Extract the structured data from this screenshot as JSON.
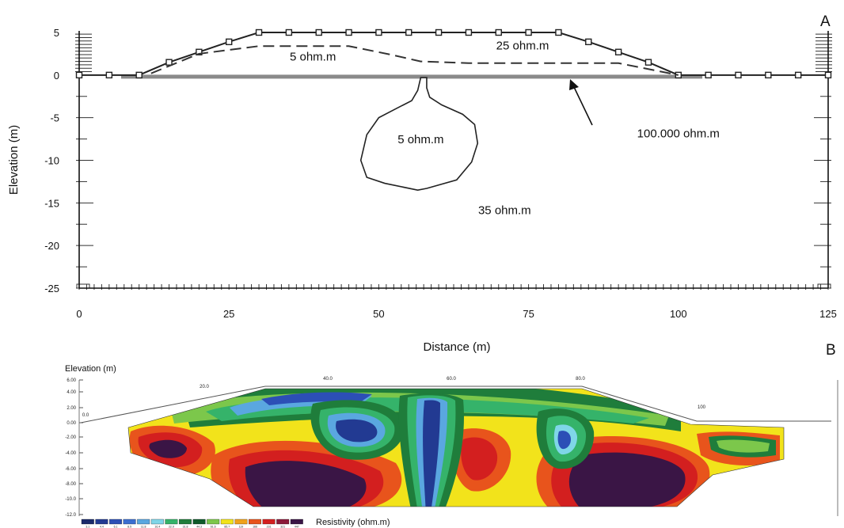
{
  "chart_data": [
    {
      "panel": "A",
      "type": "line",
      "xlabel": "Distance (m)",
      "ylabel": "Elevation (m)",
      "xlim": [
        0,
        125
      ],
      "ylim": [
        -25,
        5
      ],
      "x_ticks": [
        0,
        25,
        50,
        75,
        100,
        125
      ],
      "y_ticks": [
        5,
        0,
        -5,
        -10,
        -15,
        -20,
        -25
      ],
      "surface_profile": [
        [
          0,
          0
        ],
        [
          5,
          0
        ],
        [
          10,
          0
        ],
        [
          15,
          1.5
        ],
        [
          20,
          2.7
        ],
        [
          25,
          3.9
        ],
        [
          30,
          5
        ],
        [
          35,
          5
        ],
        [
          40,
          5
        ],
        [
          45,
          5
        ],
        [
          50,
          5
        ],
        [
          55,
          5
        ],
        [
          60,
          5
        ],
        [
          65,
          5
        ],
        [
          70,
          5
        ],
        [
          75,
          5
        ],
        [
          80,
          5
        ],
        [
          85,
          3.9
        ],
        [
          90,
          2.7
        ],
        [
          95,
          1.5
        ],
        [
          100,
          0
        ],
        [
          105,
          0
        ],
        [
          110,
          0
        ],
        [
          115,
          0
        ],
        [
          120,
          0
        ],
        [
          125,
          0
        ]
      ],
      "layer_boundary": [
        [
          12,
          0.2
        ],
        [
          20,
          2.5
        ],
        [
          30,
          3.4
        ],
        [
          45,
          3.4
        ],
        [
          52,
          2.4
        ],
        [
          57,
          1.6
        ],
        [
          65,
          1.4
        ],
        [
          90,
          1.4
        ],
        [
          100,
          0
        ]
      ],
      "anomaly_outline": [
        [
          57,
          -0.3
        ],
        [
          58,
          -0.3
        ],
        [
          58,
          -1.5
        ],
        [
          58.5,
          -2.6
        ],
        [
          60.5,
          -3.5
        ],
        [
          64,
          -4.6
        ],
        [
          66,
          -5.8
        ],
        [
          66.5,
          -8.0
        ],
        [
          65.5,
          -10.2
        ],
        [
          63,
          -12.3
        ],
        [
          58,
          -13.3
        ],
        [
          56.5,
          -13.5
        ],
        [
          51,
          -12.7
        ],
        [
          48,
          -12.0
        ],
        [
          47,
          -10.0
        ],
        [
          48,
          -7.0
        ],
        [
          50,
          -5.0
        ],
        [
          53,
          -3.9
        ],
        [
          55.5,
          -3.0
        ],
        [
          56.5,
          -1.8
        ],
        [
          57,
          -0.3
        ]
      ],
      "base_layer": {
        "x": [
          7,
          104
        ],
        "y": 0
      },
      "annotations": [
        {
          "text": "5 ohm.m",
          "x": 39,
          "y": 1.7
        },
        {
          "text": "25 ohm.m",
          "x": 74,
          "y": 3.0
        },
        {
          "text": "5 ohm.m",
          "x": 57,
          "y": -8.0
        },
        {
          "text": "100.000 ohm.m",
          "x": 100,
          "y": -7.3
        },
        {
          "text": "35 ohm.m",
          "x": 71,
          "y": -16.3
        }
      ],
      "panel_label": "A"
    },
    {
      "panel": "B",
      "type": "heatmap",
      "ylabel": "Elevation (m)",
      "x_tick_labels": [
        "0.0",
        "20.0",
        "40.0",
        "60.0",
        "80.0",
        "100"
      ],
      "y_tick_labels": [
        "6.00",
        "4.00",
        "2.00",
        "0.00",
        "-2.00",
        "-4.00",
        "-6.00",
        "-8.00",
        "-10.0",
        "-12.0"
      ],
      "colorbar_label": "Resistivity (ohm.m)",
      "colorbar_colors": [
        "#1b2a6b",
        "#223a92",
        "#2c4fb6",
        "#3c6ed0",
        "#5aa7e0",
        "#7fd6e8",
        "#35b36a",
        "#1f7d3b",
        "#0f5a2a",
        "#7cc74b",
        "#f2e31b",
        "#f0a21c",
        "#e8541c",
        "#d31f1f",
        "#8b1a3a",
        "#3a1545"
      ],
      "colorbar_values": [
        "3.1",
        "4.4",
        "6.1",
        "8.5",
        "11.8",
        "16.4",
        "22.9",
        "31.8",
        "44.3",
        "61.6",
        "85.7",
        "119",
        "166",
        "231",
        "321",
        "447"
      ],
      "panel_label": "B"
    }
  ]
}
